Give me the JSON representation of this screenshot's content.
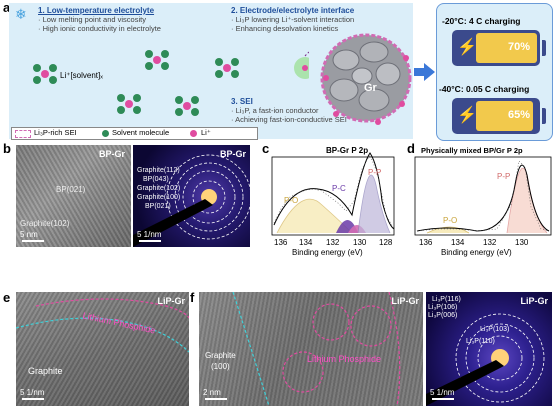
{
  "panel_labels": {
    "a": "a",
    "b": "b",
    "c": "c",
    "d": "d",
    "e": "e",
    "f": "f"
  },
  "panel_a": {
    "item1_title": "1.  Low-temperature electrolyte",
    "item1_b1": "· Low melting point and viscosity",
    "item1_b2": "· High ionic conductivity in electrolyte",
    "item2_title": "2.  Electrode/electrolyte interface",
    "item2_b1": "· Li₃P lowering Li⁺-solvent interaction",
    "item2_b2": "· Enhancing desolvation kinetics",
    "item3_title": "3.  SEI",
    "item3_b1": "· Li₃P, a fast-ion conductor",
    "item3_b2": "· Achieving fast-ion-conductive SEI",
    "li_solvent": "Li⁺[solvent]ₓ",
    "gr_label": "Gr",
    "legend_sei": "Li₃P-rich SEI",
    "legend_solvent": "Solvent molecule",
    "legend_li": "Li⁺",
    "charge1_title": "-20°C: 4 C charging",
    "charge1_value": "70%",
    "charge1_level": 0.7,
    "charge2_title": "-40°C: 0.05 C charging",
    "charge2_value": "65%",
    "charge2_level": 0.65,
    "colors": {
      "bg": "#dbeef9",
      "title": "#1f4e9a",
      "sei": "#d16bb4",
      "solvent": "#2e8b57",
      "li": "#e04ca0",
      "battery": "#3b4a8c",
      "fill": "#f2c94c",
      "arrow": "#3b78d8"
    }
  },
  "panel_b": {
    "left_title": "BP-Gr",
    "left_label1": "BP(021)",
    "left_label2": "Graphite(102)",
    "left_scale": "5 nm",
    "right_title": "BP-Gr",
    "rings": [
      "Graphite(112)",
      "BP(043)",
      "Graphite(102)",
      "Graphite(100)",
      "BP(021)"
    ],
    "right_scale": "5 1/nm"
  },
  "panel_c": {
    "title": "BP-Gr  P 2p",
    "xlabel": "Binding energy (eV)",
    "ticks": [
      "136",
      "134",
      "132",
      "130",
      "128"
    ],
    "peaks": [
      "P-O",
      "P-C",
      "P-P"
    ]
  },
  "panel_d": {
    "title": "Physically mixed BP/Gr  P 2p",
    "xlabel": "Binding energy (eV)",
    "ticks": [
      "136",
      "134",
      "132",
      "130"
    ],
    "peaks": [
      "P-O",
      "P-P"
    ]
  },
  "chart_data": [
    {
      "type": "line",
      "title": "BP-Gr  P 2p",
      "xlabel": "Binding energy (eV)",
      "xlim": [
        137,
        128
      ],
      "x_ticks": [
        136,
        134,
        132,
        130,
        128
      ],
      "series": [
        {
          "name": "P-O",
          "center": 133.6
        },
        {
          "name": "P-C",
          "center": 131.5
        },
        {
          "name": "P-P",
          "center": 129.9
        }
      ]
    },
    {
      "type": "line",
      "title": "Physically mixed BP/Gr  P 2p",
      "xlabel": "Binding energy (eV)",
      "xlim": [
        137,
        129
      ],
      "x_ticks": [
        136,
        134,
        132,
        130
      ],
      "series": [
        {
          "name": "P-O",
          "center": 134.2
        },
        {
          "name": "P-P",
          "center": 130.0
        }
      ]
    }
  ],
  "panel_e": {
    "title": "LiP-Gr",
    "phosphide": "Lithium Phosphide",
    "graphite": "Graphite",
    "scale": "5 1/nm"
  },
  "panel_f": {
    "title": "LiP-Gr",
    "graphite": "Graphite\n(100)",
    "phosphide": "Lithium Phosphide",
    "scale": "2 nm",
    "diff_title": "LiP-Gr",
    "rings": [
      "Li₃P(116)",
      "Li₃P(106)",
      "Li₃P(006)",
      "Li₃P(103)",
      "Li₃P(110)"
    ],
    "diff_scale": "5 1/nm"
  }
}
